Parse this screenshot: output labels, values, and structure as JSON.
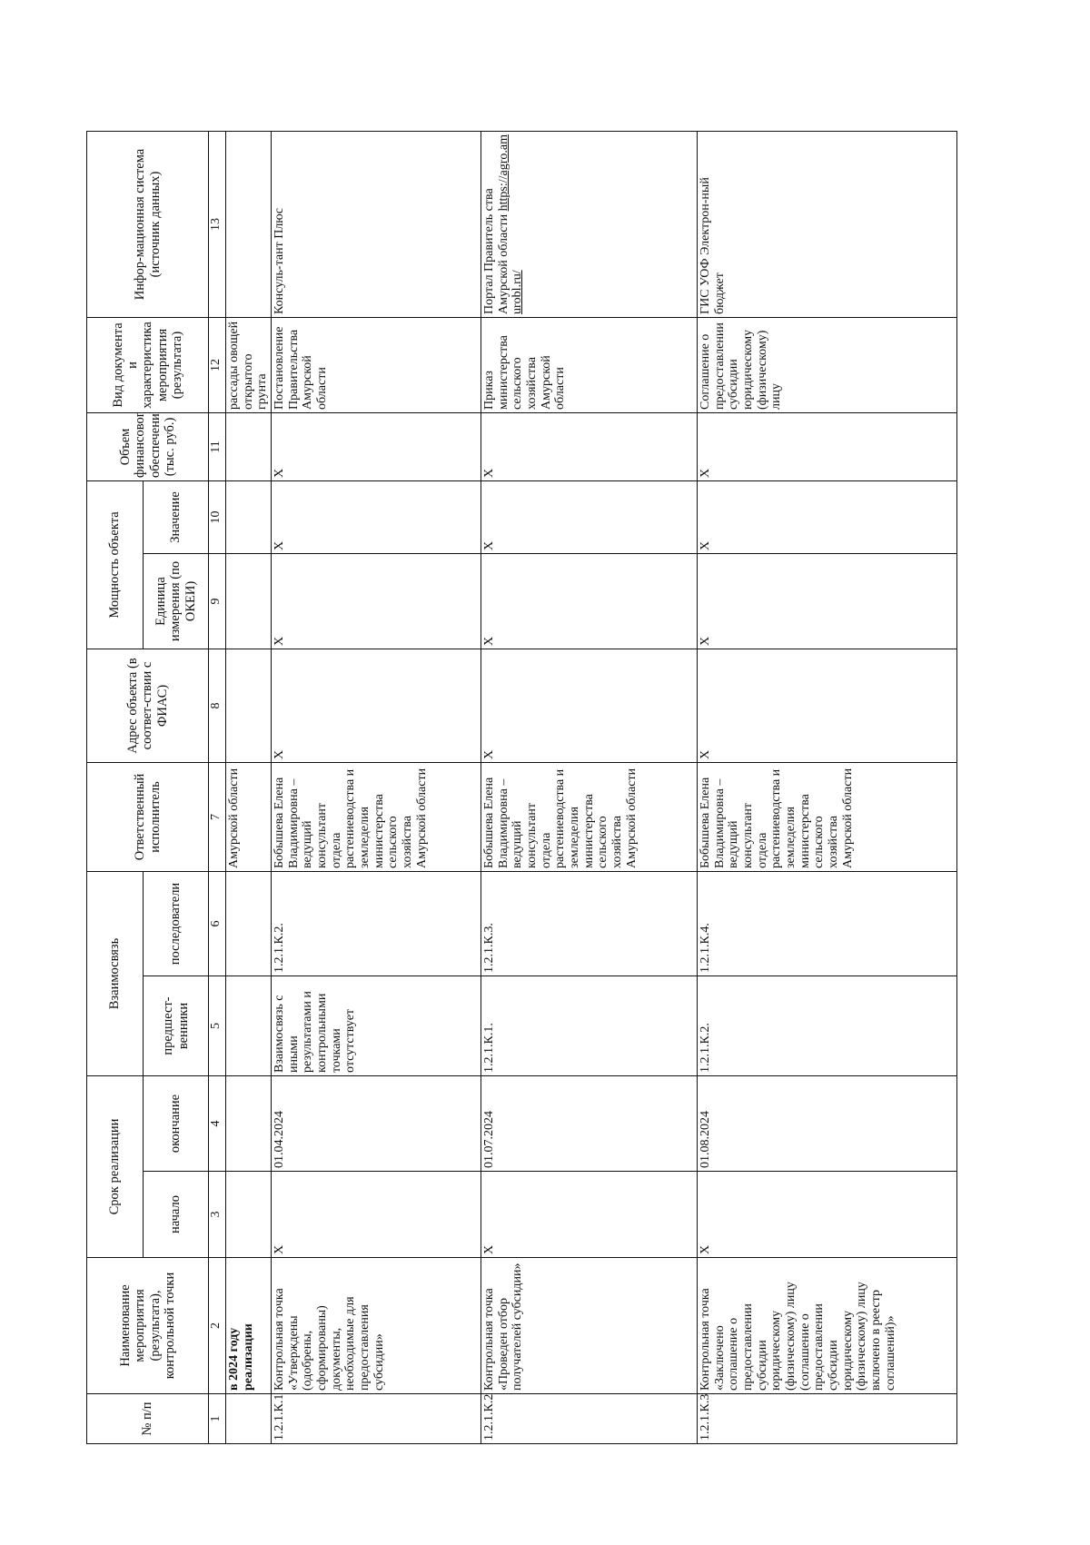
{
  "header": {
    "n": "№ п/п",
    "name": "Наименование мероприятия (результата), контрольной точки",
    "term": "Срок реализации",
    "start": "начало",
    "end": "окончание",
    "link": "Взаимосвязь",
    "pred": "предшест-венники",
    "succ": "последователи",
    "resp": "Ответственный исполнитель",
    "addr": "Адрес объекта (в соответ-ствии с ФИАС)",
    "power": "Мощность объекта",
    "unit": "Единица измерения (по ОКЕИ)",
    "val": "Значение",
    "fin": "Объем финансового обеспечения (тыс. руб.)",
    "doc": "Вид документа и характеристика мероприятия (результата)",
    "sys": "Инфор-мационная система (источник данных)"
  },
  "column_numbers": [
    1,
    2,
    3,
    4,
    5,
    6,
    7,
    8,
    9,
    10,
    11,
    12,
    13
  ],
  "continuation": [
    null,
    "в 2024 году реализации",
    null,
    null,
    null,
    null,
    "Амурской области",
    null,
    null,
    null,
    null,
    "рассады овощей открытого грунта",
    null
  ],
  "rows": [
    [
      "1.2.1.К.1.",
      "Контрольная точка «Утверждены (одобрены, сформированы) документы, необходимые для предоставления субсидии»",
      "X",
      "01.04.2024",
      "Взаимосвязь с иными результатами и контрольными точками отсутствует",
      "1.2.1.К.2.",
      "Бобышева Елена Владимировна – ведущий консультант отдела растениеводства и земледелия министерства сельского хозяйства Амурской области",
      "X",
      "X",
      "X",
      "X",
      "Постановление Правительства Амурской области",
      "Консуль-тант Плюс"
    ],
    [
      "1.2.1.К.2.",
      "Контрольная точка «Проведен отбор получателей субсидии»",
      "X",
      "01.07.2024",
      "1.2.1.К.1.",
      "1.2.1.К.3.",
      "Бобышева Елена Владимировна – ведущий консультант отдела растениеводства и земледелия министерства сельского хозяйства Амурской области",
      "X",
      "X",
      "X",
      "X",
      "Приказ министерства сельского хозяйства Амурской области",
      "Портал Правитель ства Амурской области"
    ],
    [
      "1.2.1.К.3.",
      "Контрольная точка «Заключено соглашение о предоставлении субсидии юридическому (физическому) лицу (соглашение о предоставлении субсидии юридическому (физическому) лицу включено в реестр соглашений)»",
      "X",
      "01.08.2024",
      "1.2.1.К.2.",
      "1.2.1.К.4.",
      "Бобышева Елена Владимировна – ведущий консультант отдела растениеводства и земледелия министерства сельского хозяйства Амурской области",
      "X",
      "X",
      "X",
      "X",
      "Соглашение о предоставлении субсидии юридическому (физическому) лицу",
      "ГИС УОФ Электрон-ный бюджет"
    ]
  ],
  "portal_url": "https://agro.amurobl.ru/"
}
